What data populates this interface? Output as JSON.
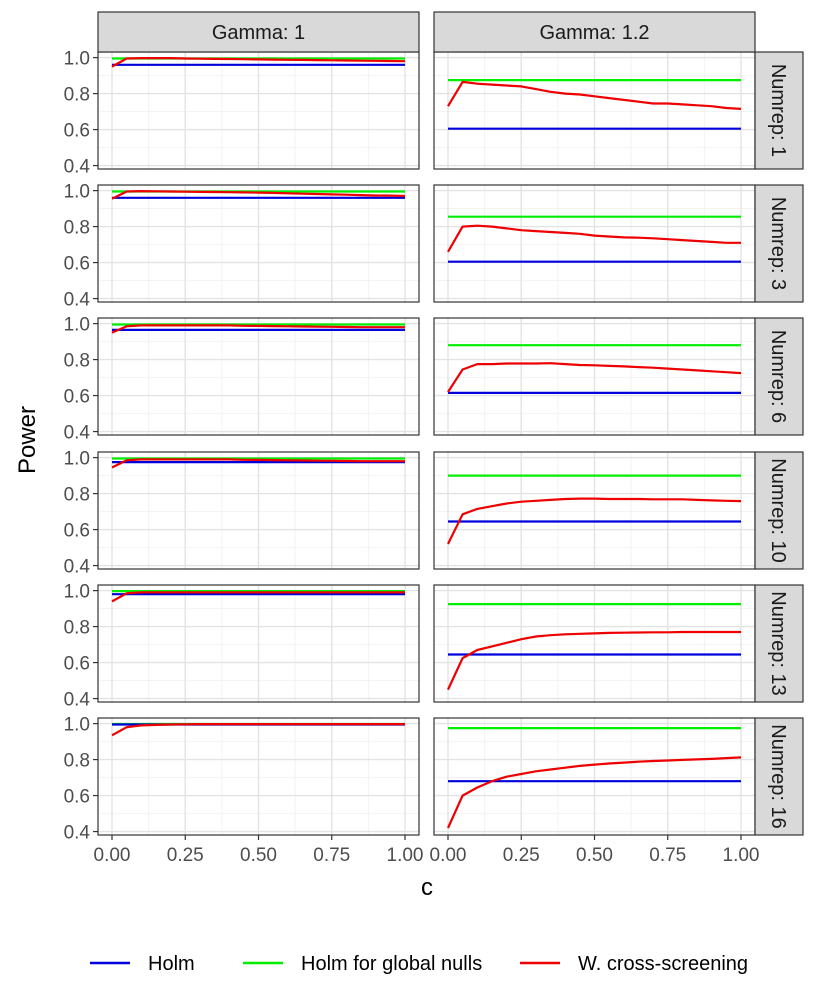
{
  "chart_data": {
    "type": "line",
    "facet_rows_label": "Numrep",
    "ylabel": "Power",
    "xlabel": "c",
    "xlim": [
      0,
      1
    ],
    "ylim": [
      0.4,
      1.0
    ],
    "x_ticks": [
      "0.00",
      "0.25",
      "0.50",
      "0.75",
      "1.00"
    ],
    "y_ticks": [
      "0.4",
      "0.6",
      "0.8",
      "1.0"
    ],
    "col_strips": [
      "Gamma: 1",
      "Gamma: 1.2"
    ],
    "row_strips": [
      "Numrep: 1",
      "Numrep: 3",
      "Numrep: 6",
      "Numrep: 10",
      "Numrep: 13",
      "Numrep: 16"
    ],
    "colors": {
      "Holm": "#0000dd",
      "Holm for global nulls": "#00ee00",
      "W. cross-screening": "#ee0000"
    },
    "legend": [
      "Holm",
      "Holm for global nulls",
      "W. cross-screening"
    ],
    "legend_position": "bottom",
    "x": [
      0,
      0.05,
      0.1,
      0.15,
      0.2,
      0.25,
      0.3,
      0.35,
      0.4,
      0.45,
      0.5,
      0.55,
      0.6,
      0.65,
      0.7,
      0.75,
      0.8,
      0.85,
      0.9,
      0.95,
      1.0
    ],
    "panels": [
      {
        "row": 0,
        "col": 0,
        "holm": 0.96,
        "holm_global": 0.995,
        "cross": [
          0.95,
          0.995,
          0.997,
          0.997,
          0.997,
          0.995,
          0.994,
          0.993,
          0.992,
          0.991,
          0.99,
          0.989,
          0.988,
          0.987,
          0.986,
          0.985,
          0.984,
          0.983,
          0.982,
          0.981,
          0.98
        ]
      },
      {
        "row": 0,
        "col": 1,
        "holm": 0.605,
        "holm_global": 0.875,
        "cross": [
          0.73,
          0.865,
          0.855,
          0.85,
          0.845,
          0.84,
          0.825,
          0.81,
          0.8,
          0.795,
          0.785,
          0.775,
          0.765,
          0.755,
          0.745,
          0.745,
          0.74,
          0.735,
          0.73,
          0.72,
          0.715
        ]
      },
      {
        "row": 1,
        "col": 0,
        "holm": 0.96,
        "holm_global": 0.995,
        "cross": [
          0.955,
          0.995,
          0.997,
          0.996,
          0.995,
          0.994,
          0.993,
          0.992,
          0.991,
          0.99,
          0.989,
          0.987,
          0.985,
          0.983,
          0.981,
          0.979,
          0.977,
          0.975,
          0.973,
          0.972,
          0.97
        ]
      },
      {
        "row": 1,
        "col": 1,
        "holm": 0.605,
        "holm_global": 0.855,
        "cross": [
          0.66,
          0.8,
          0.805,
          0.8,
          0.79,
          0.78,
          0.775,
          0.77,
          0.765,
          0.76,
          0.75,
          0.745,
          0.74,
          0.738,
          0.735,
          0.73,
          0.725,
          0.72,
          0.715,
          0.71,
          0.71
        ]
      },
      {
        "row": 2,
        "col": 0,
        "holm": 0.965,
        "holm_global": 0.995,
        "cross": [
          0.95,
          0.985,
          0.99,
          0.99,
          0.99,
          0.99,
          0.99,
          0.99,
          0.99,
          0.988,
          0.987,
          0.986,
          0.985,
          0.984,
          0.983,
          0.982,
          0.981,
          0.98,
          0.98,
          0.98,
          0.98
        ]
      },
      {
        "row": 2,
        "col": 1,
        "holm": 0.615,
        "holm_global": 0.88,
        "cross": [
          0.62,
          0.745,
          0.775,
          0.775,
          0.778,
          0.778,
          0.778,
          0.78,
          0.775,
          0.77,
          0.768,
          0.765,
          0.762,
          0.758,
          0.755,
          0.75,
          0.745,
          0.74,
          0.735,
          0.73,
          0.725
        ]
      },
      {
        "row": 3,
        "col": 0,
        "holm": 0.975,
        "holm_global": 0.995,
        "cross": [
          0.945,
          0.985,
          0.99,
          0.99,
          0.99,
          0.99,
          0.99,
          0.99,
          0.99,
          0.988,
          0.987,
          0.986,
          0.985,
          0.984,
          0.983,
          0.982,
          0.981,
          0.98,
          0.98,
          0.98,
          0.98
        ]
      },
      {
        "row": 3,
        "col": 1,
        "holm": 0.645,
        "holm_global": 0.9,
        "cross": [
          0.52,
          0.685,
          0.715,
          0.73,
          0.745,
          0.755,
          0.76,
          0.765,
          0.77,
          0.772,
          0.772,
          0.77,
          0.77,
          0.77,
          0.768,
          0.768,
          0.768,
          0.765,
          0.762,
          0.76,
          0.758
        ]
      },
      {
        "row": 4,
        "col": 0,
        "holm": 0.98,
        "holm_global": 0.997,
        "cross": [
          0.94,
          0.985,
          0.99,
          0.99,
          0.99,
          0.99,
          0.99,
          0.99,
          0.99,
          0.99,
          0.99,
          0.99,
          0.99,
          0.99,
          0.99,
          0.99,
          0.99,
          0.99,
          0.99,
          0.99,
          0.99
        ]
      },
      {
        "row": 4,
        "col": 1,
        "holm": 0.645,
        "holm_global": 0.925,
        "cross": [
          0.45,
          0.625,
          0.67,
          0.69,
          0.71,
          0.73,
          0.745,
          0.752,
          0.757,
          0.76,
          0.762,
          0.765,
          0.766,
          0.767,
          0.768,
          0.768,
          0.77,
          0.77,
          0.77,
          0.77,
          0.77
        ]
      },
      {
        "row": 5,
        "col": 0,
        "holm": 0.995,
        "holm_global": 0.998,
        "cross": [
          0.935,
          0.98,
          0.99,
          0.993,
          0.995,
          0.996,
          0.997,
          0.997,
          0.997,
          0.997,
          0.997,
          0.997,
          0.997,
          0.997,
          0.997,
          0.997,
          0.997,
          0.997,
          0.997,
          0.997,
          0.997
        ]
      },
      {
        "row": 5,
        "col": 1,
        "holm": 0.68,
        "holm_global": 0.975,
        "cross": [
          0.42,
          0.6,
          0.645,
          0.68,
          0.705,
          0.72,
          0.735,
          0.745,
          0.755,
          0.765,
          0.772,
          0.778,
          0.783,
          0.788,
          0.792,
          0.795,
          0.798,
          0.801,
          0.804,
          0.808,
          0.812
        ]
      }
    ]
  }
}
